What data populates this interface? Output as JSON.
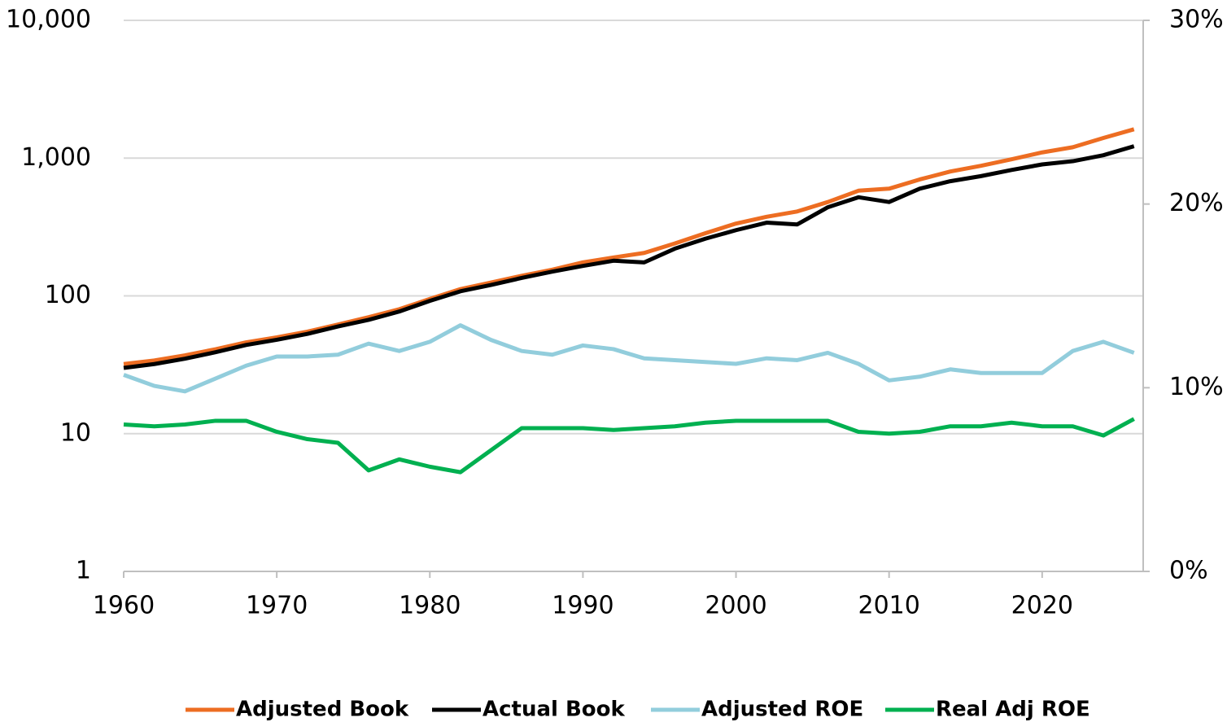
{
  "chart_data": {
    "type": "line",
    "x": [
      1960,
      1962,
      1964,
      1966,
      1968,
      1970,
      1972,
      1974,
      1976,
      1978,
      1980,
      1982,
      1984,
      1986,
      1988,
      1990,
      1992,
      1994,
      1996,
      1998,
      2000,
      2002,
      2004,
      2006,
      2008,
      2010,
      2012,
      2014,
      2016,
      2018,
      2020,
      2022,
      2024,
      2026
    ],
    "series": [
      {
        "name": "Adjusted Book",
        "color": "#ed6d22",
        "values": [
          32,
          34,
          37,
          41,
          46,
          50,
          55,
          62,
          70,
          80,
          95,
          112,
          125,
          140,
          155,
          175,
          190,
          205,
          240,
          285,
          335,
          375,
          410,
          480,
          580,
          600,
          700,
          800,
          880,
          980,
          1100,
          1200,
          1400,
          1620
        ]
      },
      {
        "name": "Actual Book",
        "color": "#000000",
        "values": [
          30,
          32,
          35,
          39,
          44,
          48,
          53,
          60,
          67,
          77,
          92,
          108,
          120,
          135,
          150,
          165,
          180,
          175,
          220,
          260,
          300,
          340,
          330,
          440,
          520,
          480,
          600,
          680,
          740,
          820,
          900,
          950,
          1050,
          1220
        ]
      },
      {
        "name": "Adjusted ROE",
        "color": "#92cddc",
        "axis": "y2",
        "values": [
          10.7,
          10.1,
          9.8,
          10.5,
          11.2,
          11.7,
          11.7,
          11.8,
          12.4,
          12.0,
          12.5,
          13.4,
          12.6,
          12.0,
          11.8,
          12.3,
          12.1,
          11.6,
          11.5,
          11.4,
          11.3,
          11.6,
          11.5,
          11.9,
          11.3,
          10.4,
          10.6,
          11.0,
          10.8,
          10.8,
          10.8,
          12.0,
          12.5,
          11.9
        ]
      },
      {
        "name": "Real Adj ROE",
        "color": "#00b050",
        "axis": "y2",
        "values": [
          8.0,
          7.9,
          8.0,
          8.2,
          8.2,
          7.6,
          7.2,
          7.0,
          5.5,
          6.1,
          5.7,
          5.4,
          6.6,
          7.8,
          7.8,
          7.8,
          7.7,
          7.8,
          7.9,
          8.1,
          8.2,
          8.2,
          8.2,
          8.2,
          7.6,
          7.5,
          7.6,
          7.9,
          7.9,
          8.1,
          7.9,
          7.9,
          7.4,
          8.3
        ]
      }
    ],
    "xlim": [
      1960,
      2026.6
    ],
    "xticks": [
      1960,
      1970,
      1980,
      1990,
      2000,
      2010,
      2020
    ],
    "ylim": [
      1,
      10000
    ],
    "ylog": true,
    "yticks": [
      1,
      10,
      100,
      {
        "value": 1000,
        "label": "1,000"
      },
      {
        "value": 10000,
        "label": "10,000"
      }
    ],
    "y2lim": [
      0,
      30
    ],
    "y2ticks": [
      {
        "value": 0,
        "label": "0%"
      },
      {
        "value": 10,
        "label": "10%"
      },
      {
        "value": 20,
        "label": "20%"
      },
      {
        "value": 30,
        "label": "30%"
      }
    ],
    "grid": true,
    "legend": "bottom"
  }
}
